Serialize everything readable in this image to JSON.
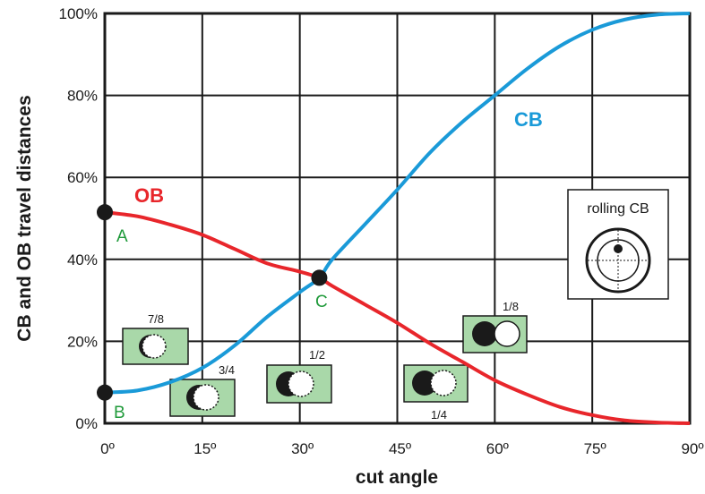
{
  "chart_data": {
    "type": "line",
    "xlabel": "cut angle",
    "ylabel": "CB and OB travel distances",
    "xlim": [
      0,
      90
    ],
    "ylim": [
      0,
      100
    ],
    "x_ticks": [
      "0º",
      "15º",
      "30º",
      "45º",
      "60º",
      "75º",
      "90º"
    ],
    "y_ticks": [
      "0%",
      "20%",
      "40%",
      "60%",
      "80%",
      "100%"
    ],
    "grid": true,
    "series": [
      {
        "name": "CB",
        "color": "#1a9ad8",
        "x": [
          0,
          5,
          10,
          15,
          20,
          25,
          30,
          33,
          35,
          40,
          45,
          50,
          55,
          60,
          65,
          70,
          75,
          80,
          85,
          90
        ],
        "y": [
          7.5,
          8.0,
          10.0,
          13.5,
          19.0,
          26.0,
          32.0,
          35.5,
          40.0,
          48.5,
          57.0,
          66.0,
          73.5,
          80.0,
          86.5,
          92.0,
          96.0,
          98.5,
          99.7,
          100.0
        ]
      },
      {
        "name": "OB",
        "color": "#e8262b",
        "x": [
          0,
          5,
          10,
          15,
          20,
          25,
          30,
          33,
          35,
          40,
          45,
          50,
          55,
          60,
          65,
          70,
          75,
          80,
          85,
          90
        ],
        "y": [
          51.5,
          50.5,
          48.5,
          46.0,
          42.5,
          39.0,
          37.0,
          35.5,
          33.5,
          29.0,
          24.5,
          19.5,
          15.0,
          10.5,
          7.0,
          4.0,
          2.0,
          0.7,
          0.2,
          0.0
        ]
      }
    ],
    "points": [
      {
        "label": "A",
        "x": 0,
        "y": 51.5
      },
      {
        "label": "B",
        "x": 0,
        "y": 7.5
      },
      {
        "label": "C",
        "x": 33,
        "y": 35.5
      }
    ],
    "fractions": [
      "7/8",
      "3/4",
      "1/2",
      "1/4",
      "1/8"
    ],
    "inset_title": "rolling CB"
  }
}
